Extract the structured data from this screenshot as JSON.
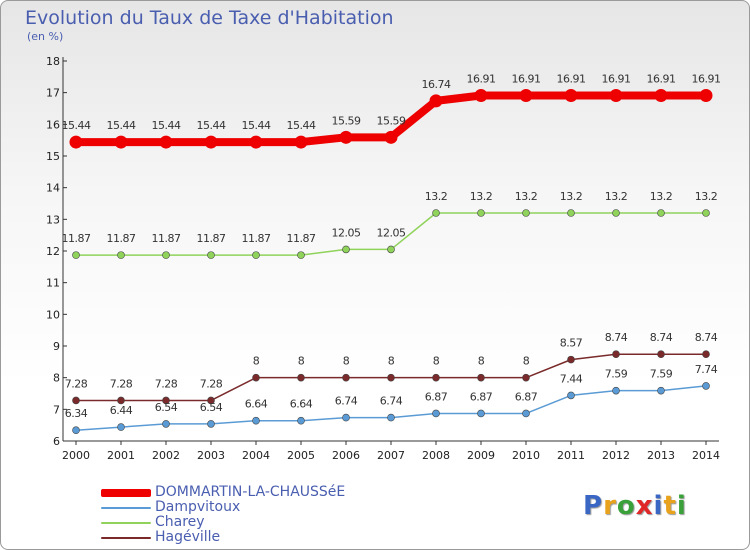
{
  "title": "Evolution du Taux de Taxe d'Habitation",
  "subtitle": "(en %)",
  "logo_text": "Proxiti",
  "logo_colors": [
    "#3a66c4",
    "#e8a21c",
    "#3aa13a",
    "#e02828",
    "#3a66c4",
    "#e8a21c",
    "#3aa13a"
  ],
  "chart_data": {
    "type": "line",
    "title": "Evolution du Taux de Taxe d'Habitation",
    "ylabel": "(en %)",
    "xlabel": "",
    "x": [
      "2000",
      "2001",
      "2002",
      "2003",
      "2004",
      "2005",
      "2006",
      "2007",
      "2008",
      "2009",
      "2010",
      "2011",
      "2012",
      "2013",
      "2014"
    ],
    "ylim": [
      6,
      18
    ],
    "yticks": [
      "6",
      "7",
      "8",
      "9",
      "10",
      "11",
      "12",
      "13",
      "14",
      "15",
      "16",
      "17",
      "18"
    ],
    "grid": false,
    "legend_position": "bottom-left",
    "series": [
      {
        "name": "DOMMARTIN-LA-CHAUSSéE",
        "color": "#ee0000",
        "values": [
          15.44,
          15.44,
          15.44,
          15.44,
          15.44,
          15.44,
          15.59,
          15.59,
          16.74,
          16.91,
          16.91,
          16.91,
          16.91,
          16.91,
          16.91
        ],
        "labels": [
          "15.44",
          "15.44",
          "15.44",
          "15.44",
          "15.44",
          "15.44",
          "15.59",
          "15.59",
          "16.74",
          "16.91",
          "16.91",
          "16.91",
          "16.91",
          "16.91",
          "16.91"
        ]
      },
      {
        "name": "Dampvitoux",
        "color": "#5b9bd5",
        "values": [
          6.34,
          6.44,
          6.54,
          6.54,
          6.64,
          6.64,
          6.74,
          6.74,
          6.87,
          6.87,
          6.87,
          7.44,
          7.59,
          7.59,
          7.74
        ],
        "labels": [
          "6.34",
          "6.44",
          "6.54",
          "6.54",
          "6.64",
          "6.64",
          "6.74",
          "6.74",
          "6.87",
          "6.87",
          "6.87",
          "7.44",
          "7.59",
          "7.59",
          "7.74"
        ]
      },
      {
        "name": "Charey",
        "color": "#8fd35b",
        "values": [
          11.87,
          11.87,
          11.87,
          11.87,
          11.87,
          11.87,
          12.05,
          12.05,
          13.2,
          13.2,
          13.2,
          13.2,
          13.2,
          13.2,
          13.2
        ],
        "labels": [
          "11.87",
          "11.87",
          "11.87",
          "11.87",
          "11.87",
          "11.87",
          "12.05",
          "12.05",
          "13.2",
          "13.2",
          "13.2",
          "13.2",
          "13.2",
          "13.2",
          "13.2"
        ]
      },
      {
        "name": "Hagéville",
        "color": "#7a2a2a",
        "values": [
          7.28,
          7.28,
          7.28,
          7.28,
          8,
          8,
          8,
          8,
          8,
          8,
          8,
          8.57,
          8.74,
          8.74,
          8.74
        ],
        "labels": [
          "7.28",
          "7.28",
          "7.28",
          "7.28",
          "8",
          "8",
          "8",
          "8",
          "8",
          "8",
          "8",
          "8.57",
          "8.74",
          "8.74",
          "8.74"
        ]
      }
    ]
  }
}
